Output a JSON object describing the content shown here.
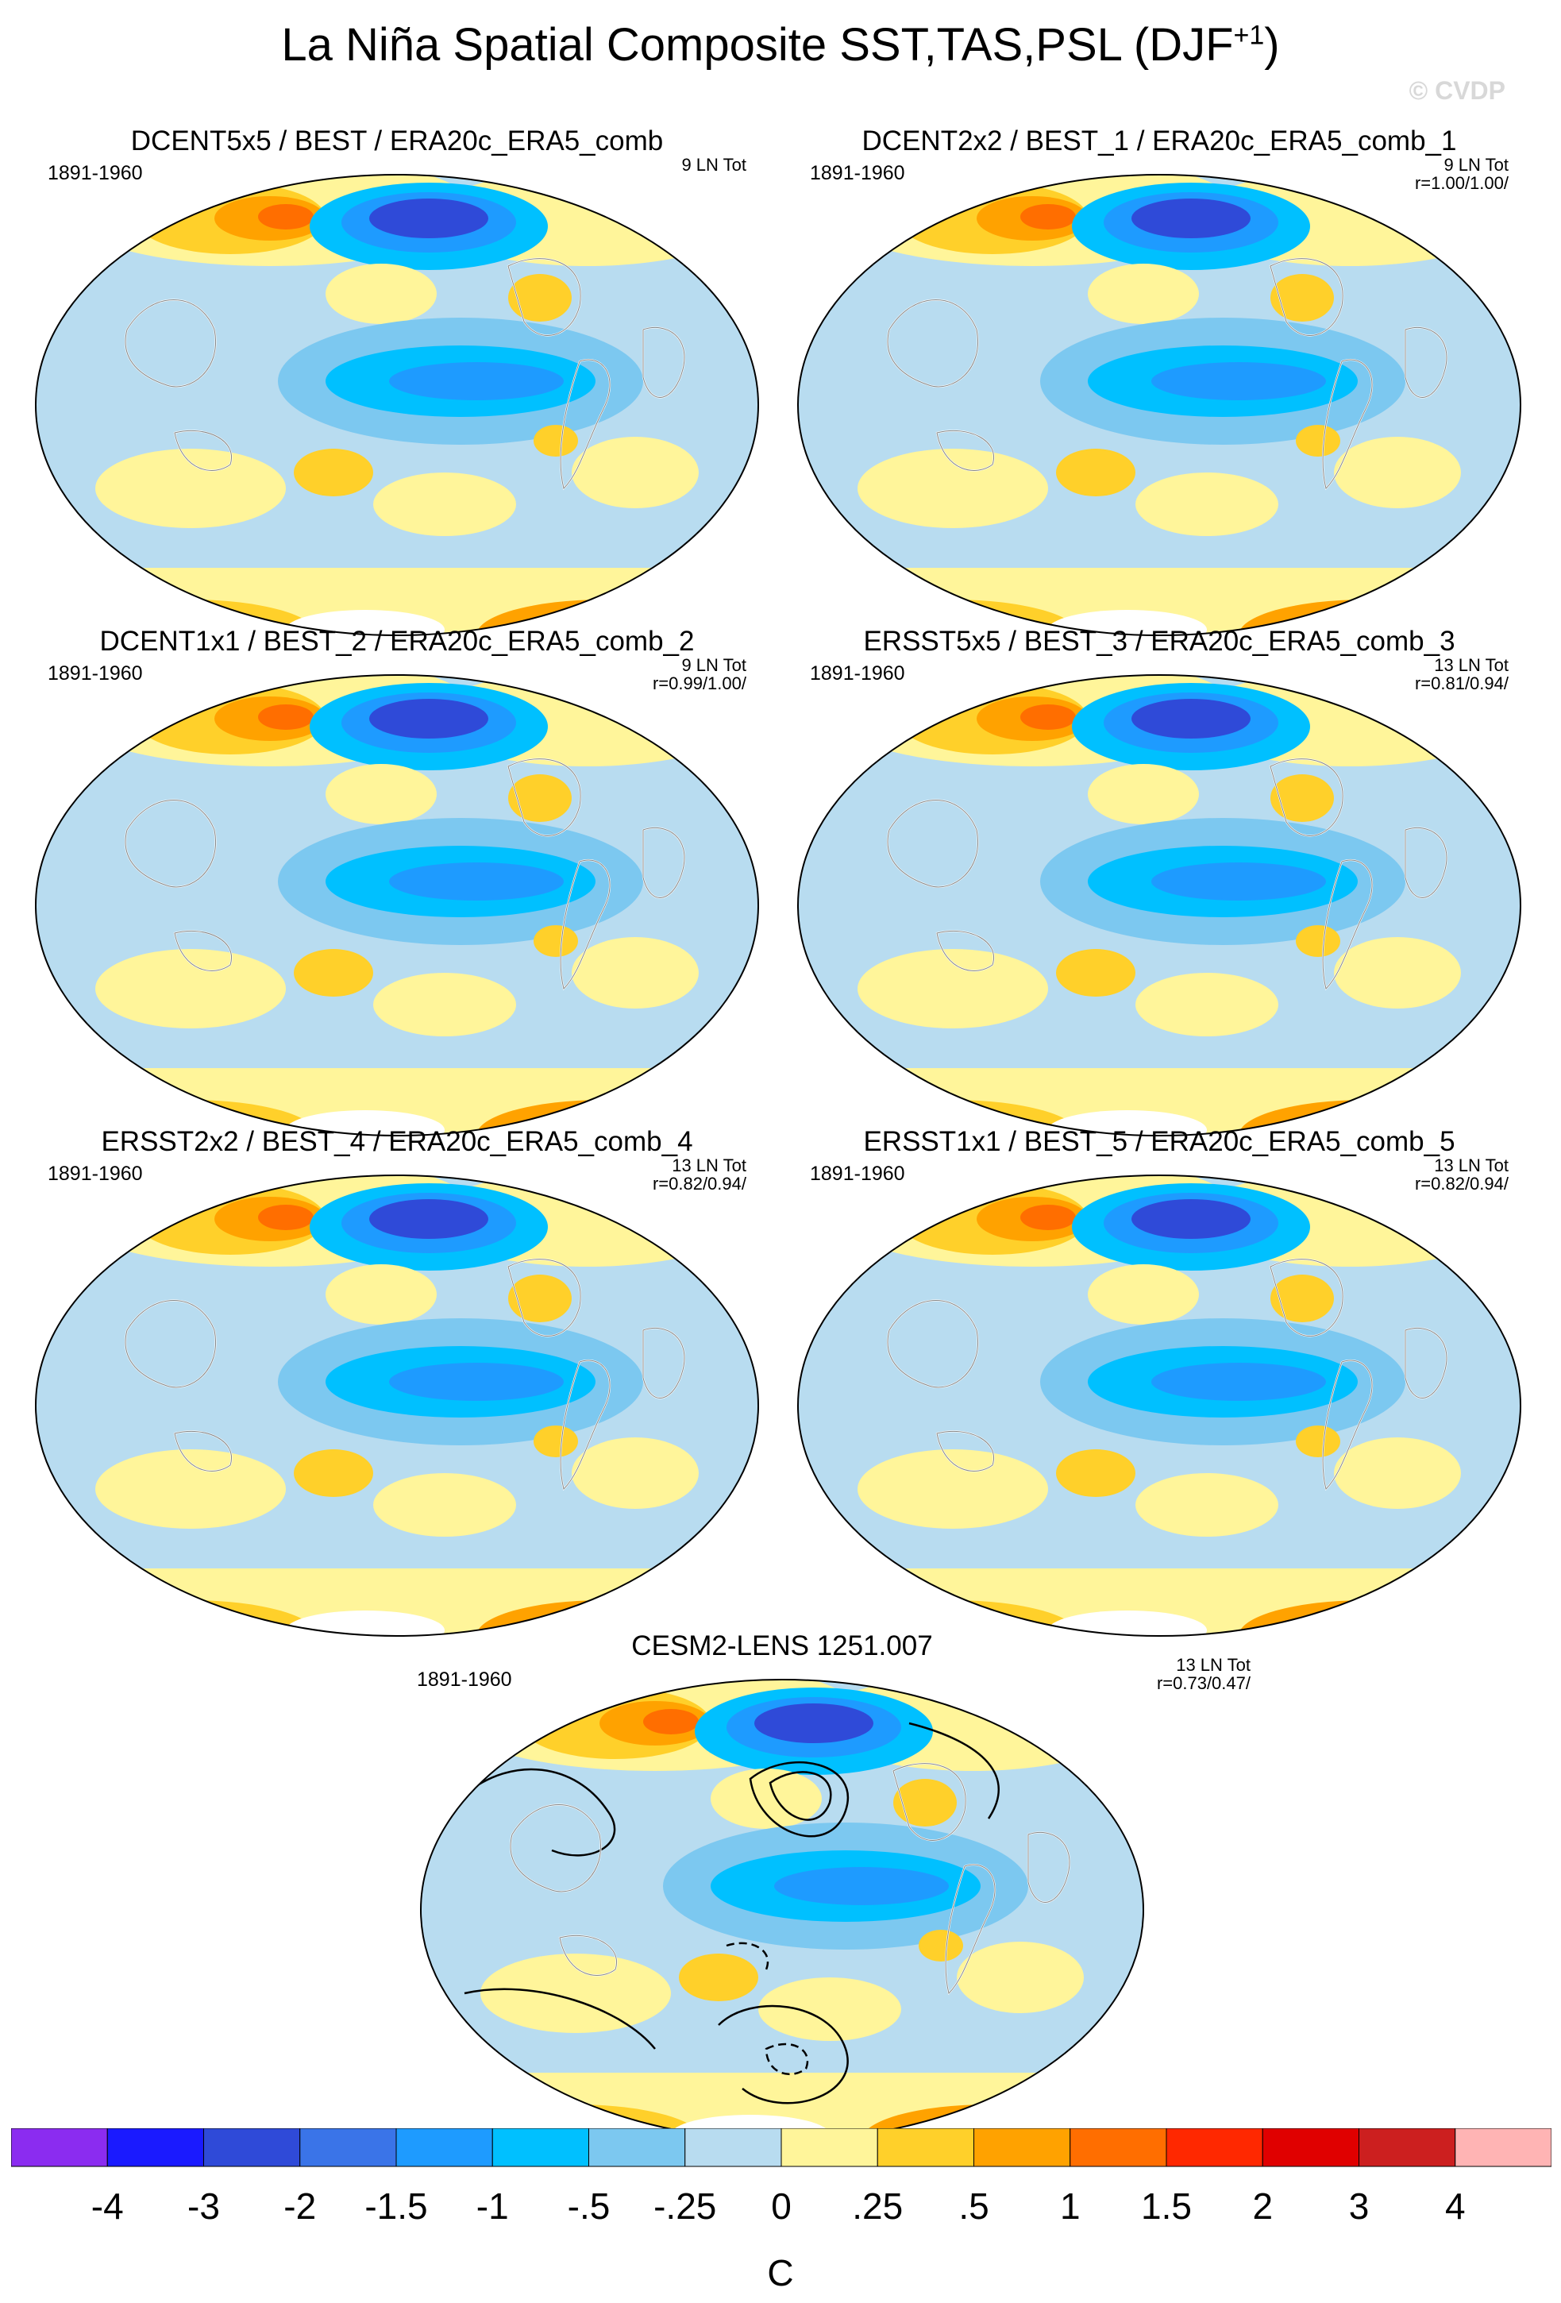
{
  "figure": {
    "title_main": "La Niña Spatial Composite SST,TAS,PSL (DJF",
    "title_sup": "+1",
    "title_end": ")",
    "copyright": "© CVDP"
  },
  "panels": [
    {
      "title": "DCENT5x5 / BEST / ERA20c_ERA5_comb",
      "period": "1891-1960",
      "count": "9 LN Tot",
      "corr": ""
    },
    {
      "title": "DCENT2x2 / BEST_1 / ERA20c_ERA5_comb_1",
      "period": "1891-1960",
      "count": "9 LN Tot",
      "corr": "r=1.00/1.00/"
    },
    {
      "title": "DCENT1x1 / BEST_2 / ERA20c_ERA5_comb_2",
      "period": "1891-1960",
      "count": "9 LN Tot",
      "corr": "r=0.99/1.00/"
    },
    {
      "title": "ERSST5x5 / BEST_3 / ERA20c_ERA5_comb_3",
      "period": "1891-1960",
      "count": "13 LN Tot",
      "corr": "r=0.81/0.94/"
    },
    {
      "title": "ERSST2x2 / BEST_4 / ERA20c_ERA5_comb_4",
      "period": "1891-1960",
      "count": "13 LN Tot",
      "corr": "r=0.82/0.94/"
    },
    {
      "title": "ERSST1x1 / BEST_5 / ERA20c_ERA5_comb_5",
      "period": "1891-1960",
      "count": "13 LN Tot",
      "corr": "r=0.82/0.94/"
    },
    {
      "title": "CESM2-LENS 1251.007",
      "period": "1891-1960",
      "count": "13 LN Tot",
      "corr": "r=0.73/0.47/"
    }
  ],
  "colorbar": {
    "units": "C",
    "labels": [
      "-4",
      "-3",
      "-2",
      "-1.5",
      "-1",
      "-.5",
      "-.25",
      "0",
      ".25",
      ".5",
      "1",
      "1.5",
      "2",
      "3",
      "4"
    ],
    "colors": [
      "#8b2cf0",
      "#1a1aff",
      "#2f4ad8",
      "#3a74e8",
      "#1e9bff",
      "#00c0ff",
      "#7cc8f0",
      "#b8dcf0",
      "#fff59a",
      "#ffd02a",
      "#ffa200",
      "#ff6e00",
      "#ff2800",
      "#e00000",
      "#cc1f1f",
      "#ffb4b4"
    ]
  },
  "palette": {
    "ocean_base": "#b8dcf0",
    "cool1": "#7cc8f0",
    "cool2": "#00c0ff",
    "cool3": "#1e9bff",
    "cool4": "#2f4ad8",
    "warm1": "#fff59a",
    "warm2": "#ffd02a",
    "warm3": "#ffa200",
    "warm4": "#ff6e00",
    "warm5": "#ff2800"
  }
}
